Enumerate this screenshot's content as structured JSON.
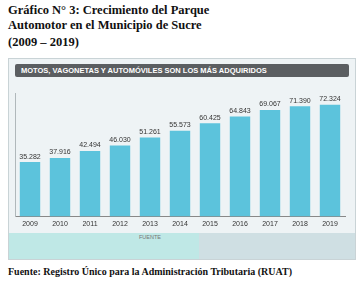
{
  "chart_data": {
    "type": "bar",
    "title": "Gráfico N° 3: Crecimiento del Parque Automotor en el Municipio de Sucre",
    "subtitle": "(2009 – 2019)",
    "annotations": {
      "banner": "MOTOS, VAGONETAS Y AUTOMÓVILES SON LOS MÁS ADQUIRIDOS",
      "band": "FUENTE",
      "source": "Fuente: Registro Único para la Administración Tributaria (RUAT)"
    },
    "categories": [
      "2009",
      "2010",
      "2011",
      "2012",
      "2013",
      "2014",
      "2015",
      "2016",
      "2017",
      "2018",
      "2019"
    ],
    "values": [
      35282,
      37916,
      42494,
      46030,
      51261,
      55573,
      60425,
      64843,
      69067,
      71390,
      72324
    ],
    "value_labels": [
      "35.282",
      "37.916",
      "42.494",
      "46.030",
      "51.261",
      "55.573",
      "60.425",
      "64.843",
      "69.067",
      "71.390",
      "72.324"
    ],
    "color": "#5cc3dc",
    "ylim": [
      0,
      80000
    ],
    "grid": false,
    "data_labels": true,
    "tick_labels": "x"
  }
}
